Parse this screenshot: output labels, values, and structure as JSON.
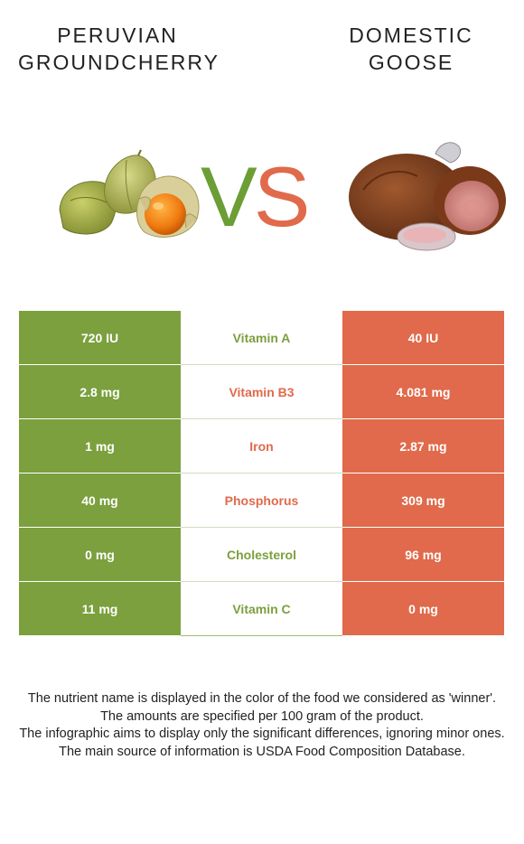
{
  "header": {
    "left_food": "PERUVIAN\nGROUNDCHERRY",
    "right_food": "DOMESTIC\nGOOSE",
    "vs_v": "V",
    "vs_s": "S"
  },
  "images": {
    "left": "peruvian-groundcherry-image",
    "right": "domestic-goose-image"
  },
  "colors": {
    "left_food": "#7ba03d",
    "right_food": "#e06a4b"
  },
  "rows": [
    {
      "left": "720 IU",
      "nutrient": "Vitamin A",
      "right": "40 IU",
      "winner": "left"
    },
    {
      "left": "2.8 mg",
      "nutrient": "Vitamin B3",
      "right": "4.081 mg",
      "winner": "right"
    },
    {
      "left": "1 mg",
      "nutrient": "Iron",
      "right": "2.87 mg",
      "winner": "right"
    },
    {
      "left": "40 mg",
      "nutrient": "Phosphorus",
      "right": "309 mg",
      "winner": "right"
    },
    {
      "left": "0 mg",
      "nutrient": "Cholesterol",
      "right": "96 mg",
      "winner": "left"
    },
    {
      "left": "11 mg",
      "nutrient": "Vitamin C",
      "right": "0 mg",
      "winner": "left"
    }
  ],
  "footer": {
    "line1": "The nutrient name is displayed in the color of the food we considered as 'winner'.",
    "line2": "The amounts are specified per 100 gram of the product.",
    "line3": "The infographic aims to display only the significant differences, ignoring minor ones.",
    "line4": "The main source of information is USDA Food Composition Database."
  }
}
